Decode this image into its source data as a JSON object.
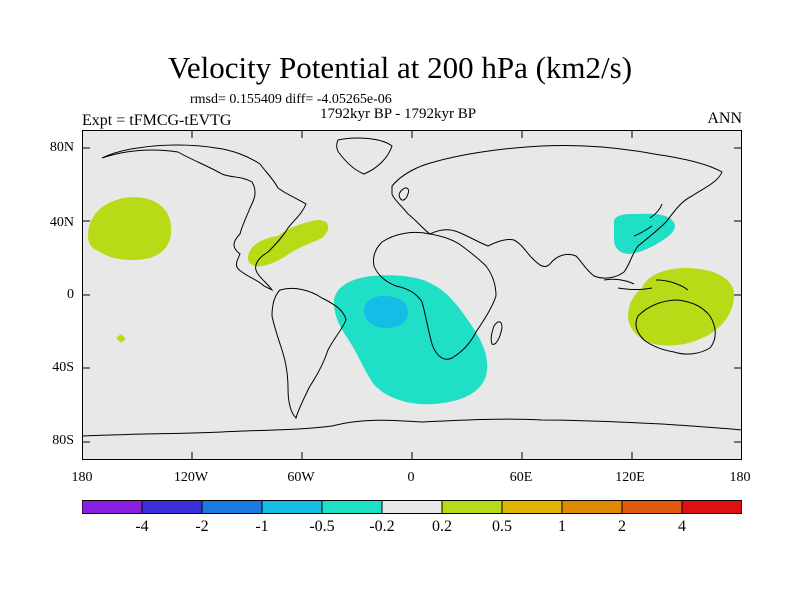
{
  "title": "Velocity Potential at 200 hPa (km2/s)",
  "stats": "rmsd= 0.155409 diff= -4.05265e-06",
  "period": "1792kyr BP - 1792kyr BP",
  "experiment": "Expt = tFMCG-tEVTG",
  "season": "ANN",
  "lat_labels": [
    "80N",
    "40N",
    "0",
    "40S",
    "80S"
  ],
  "lon_labels": [
    "180",
    "120W",
    "60W",
    "0",
    "60E",
    "120E",
    "180"
  ],
  "colorbar": {
    "colors": [
      "#8a1fe0",
      "#3b2fdc",
      "#1d7ae0",
      "#15bde6",
      "#1fe0c6",
      "#e8e8e8",
      "#b7dc17",
      "#e0b400",
      "#e08a00",
      "#e05a10",
      "#e01010"
    ],
    "labels": [
      "-4",
      "-2",
      "-1",
      "-0.5",
      "-0.2",
      "0.2",
      "0.5",
      "1",
      "2",
      "4"
    ]
  },
  "map_colors": {
    "background": "#e8e8e8",
    "positive": "#b7dc17",
    "negative_weak": "#1fe0c6",
    "negative_mid": "#15bde6"
  }
}
